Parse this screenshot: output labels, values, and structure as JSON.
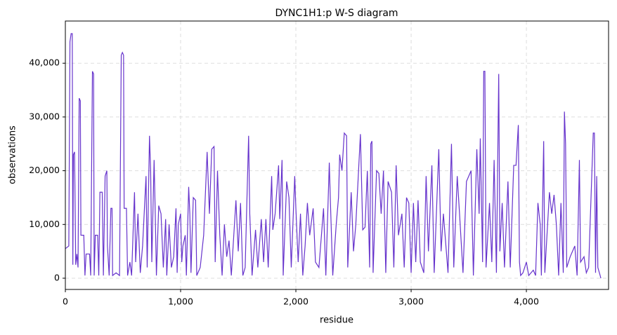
{
  "chart_data": {
    "type": "line",
    "title": "DYNC1H1:p W-S diagram",
    "x_label": "residue",
    "y_label": "observations",
    "xlim": [
      0,
      4713
    ],
    "ylim": [
      -2090,
      47850
    ],
    "xticks": [
      0,
      {
        "value": 1000,
        "label": "1,000"
      },
      {
        "value": 2000,
        "label": "2,000"
      },
      {
        "value": 3000,
        "label": "3,000"
      },
      {
        "value": 4000,
        "label": "4,000"
      }
    ],
    "yticks": [
      0,
      {
        "value": 10000,
        "label": "10,000"
      },
      {
        "value": 20000,
        "label": "20,000"
      },
      {
        "value": 30000,
        "label": "30,000"
      },
      {
        "value": 40000,
        "label": "40,000"
      }
    ],
    "grid": true,
    "x": [
      0,
      30,
      40,
      50,
      60,
      65,
      70,
      80,
      90,
      100,
      110,
      120,
      130,
      135,
      160,
      170,
      180,
      210,
      220,
      235,
      245,
      250,
      260,
      280,
      290,
      300,
      320,
      330,
      345,
      360,
      365,
      380,
      395,
      405,
      410,
      440,
      470,
      485,
      495,
      505,
      510,
      530,
      540,
      560,
      575,
      590,
      600,
      610,
      630,
      650,
      670,
      700,
      710,
      730,
      740,
      750,
      770,
      780,
      790,
      810,
      830,
      850,
      870,
      880,
      900,
      920,
      940,
      960,
      970,
      980,
      1000,
      1010,
      1020,
      1040,
      1050,
      1070,
      1080,
      1090,
      1110,
      1130,
      1140,
      1170,
      1200,
      1230,
      1250,
      1270,
      1290,
      1300,
      1320,
      1340,
      1360,
      1380,
      1400,
      1420,
      1440,
      1480,
      1500,
      1520,
      1540,
      1560,
      1590,
      1600,
      1620,
      1650,
      1670,
      1700,
      1720,
      1740,
      1760,
      1790,
      1800,
      1820,
      1850,
      1860,
      1880,
      1890,
      1920,
      1940,
      1960,
      1990,
      2000,
      2020,
      2040,
      2060,
      2080,
      2100,
      2120,
      2150,
      2170,
      2200,
      2240,
      2260,
      2290,
      2300,
      2320,
      2350,
      2370,
      2380,
      2400,
      2420,
      2440,
      2450,
      2480,
      2500,
      2520,
      2560,
      2580,
      2600,
      2620,
      2640,
      2650,
      2660,
      2670,
      2700,
      2720,
      2740,
      2760,
      2780,
      2800,
      2830,
      2850,
      2870,
      2890,
      2920,
      2940,
      2960,
      2980,
      3000,
      3020,
      3040,
      3060,
      3080,
      3110,
      3130,
      3150,
      3180,
      3200,
      3240,
      3260,
      3280,
      3320,
      3350,
      3370,
      3400,
      3420,
      3450,
      3480,
      3520,
      3540,
      3570,
      3590,
      3600,
      3620,
      3630,
      3640,
      3650,
      3680,
      3700,
      3720,
      3740,
      3760,
      3770,
      3790,
      3810,
      3840,
      3860,
      3890,
      3910,
      3930,
      3940,
      3950,
      3970,
      4000,
      4020,
      4060,
      4080,
      4100,
      4120,
      4130,
      4150,
      4160,
      4200,
      4220,
      4240,
      4260,
      4280,
      4300,
      4320,
      4330,
      4340,
      4350,
      4380,
      4400,
      4420,
      4440,
      4460,
      4470,
      4500,
      4520,
      4540,
      4580,
      4590,
      4600,
      4610,
      4620,
      4640,
      4646
    ],
    "series": [
      {
        "color": "#6633cc",
        "values": [
          5500,
          6000,
          44000,
          45500,
          45500,
          2500,
          23000,
          23500,
          2500,
          4500,
          2000,
          33500,
          33000,
          8000,
          8000,
          500,
          4500,
          4500,
          500,
          38500,
          38000,
          500,
          8000,
          8000,
          500,
          16000,
          16000,
          500,
          19000,
          20000,
          6000,
          500,
          13000,
          13000,
          500,
          1000,
          500,
          41500,
          42000,
          41500,
          13000,
          13000,
          500,
          3000,
          500,
          10000,
          16000,
          3000,
          12000,
          1000,
          6000,
          19000,
          2000,
          26500,
          20000,
          3000,
          22000,
          12000,
          500,
          13500,
          12000,
          2000,
          11000,
          500,
          10000,
          2000,
          4000,
          13000,
          1000,
          10000,
          12000,
          3000,
          6000,
          8000,
          500,
          17000,
          12000,
          1000,
          15000,
          14500,
          500,
          2000,
          8000,
          23500,
          12000,
          24000,
          24500,
          3000,
          20000,
          8000,
          500,
          10000,
          4000,
          7000,
          500,
          14500,
          5000,
          14000,
          500,
          2000,
          26500,
          12000,
          500,
          9000,
          2000,
          11000,
          3000,
          11000,
          2000,
          19000,
          9000,
          12000,
          21000,
          11000,
          22000,
          500,
          18000,
          15000,
          2000,
          19000,
          13000,
          3000,
          12000,
          500,
          6000,
          14000,
          8000,
          13000,
          3000,
          2000,
          13000,
          500,
          21500,
          14000,
          500,
          10000,
          15000,
          23000,
          20000,
          27000,
          26500,
          2000,
          16000,
          5000,
          10000,
          26800,
          9000,
          9500,
          20000,
          2000,
          25000,
          25500,
          1000,
          20000,
          19500,
          12000,
          20000,
          1000,
          18000,
          16000,
          2000,
          21000,
          8000,
          12000,
          2000,
          15000,
          14000,
          1000,
          14000,
          3000,
          14500,
          3000,
          1000,
          19000,
          5000,
          21000,
          1000,
          24000,
          5000,
          12000,
          1000,
          25000,
          2000,
          19000,
          12000,
          1000,
          18000,
          20000,
          500,
          24000,
          12000,
          26000,
          3000,
          38500,
          38500,
          2000,
          14000,
          3000,
          22000,
          1000,
          38000,
          5000,
          14000,
          2000,
          18000,
          2000,
          21000,
          21000,
          28500,
          3000,
          500,
          1000,
          3000,
          500,
          1500,
          500,
          14000,
          10000,
          500,
          25500,
          1000,
          16000,
          12000,
          15500,
          10000,
          500,
          14000,
          1000,
          31000,
          25000,
          2000,
          4000,
          5000,
          6000,
          500,
          22000,
          3000,
          4000,
          1000,
          2000,
          27000,
          27000,
          1000,
          19000,
          2000,
          500,
          0
        ]
      }
    ]
  }
}
